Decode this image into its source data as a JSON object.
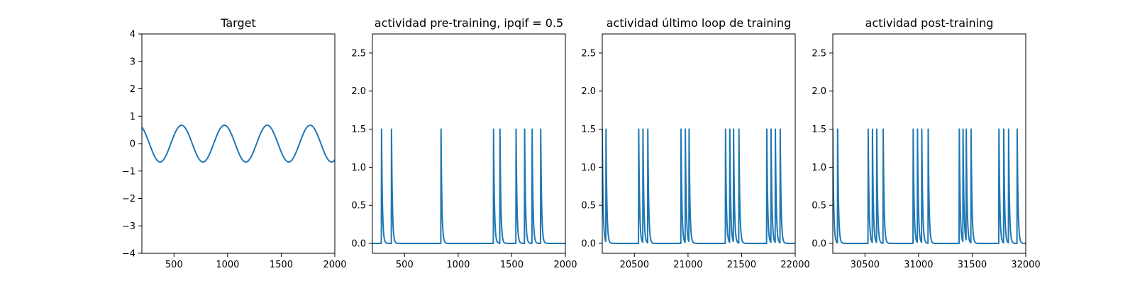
{
  "chart_data": [
    {
      "type": "line",
      "title": "Target",
      "xlim": [
        200,
        2000
      ],
      "ylim": [
        -4,
        4
      ],
      "xticks": [
        500,
        1000,
        1500,
        2000
      ],
      "yticks": [
        -4,
        -3,
        -2,
        -1,
        0,
        1,
        2,
        3,
        4
      ],
      "xtick_labels": [
        "500",
        "1000",
        "1500",
        "2000"
      ],
      "ytick_labels": [
        "−4",
        "−3",
        "−2",
        "−1",
        "0",
        "1",
        "2",
        "3",
        "4"
      ],
      "series": [
        {
          "kind": "sine",
          "amplitude": 0.67,
          "period": 400,
          "peak_x": [
            570,
            970,
            1370,
            1770
          ],
          "trough_x": [
            370,
            770,
            1170,
            1570,
            1970
          ],
          "color": "#1f77b4"
        }
      ]
    },
    {
      "type": "line",
      "title": "actividad pre-training, ipqif = 0.5",
      "xlim": [
        200,
        2000
      ],
      "ylim": [
        -0.13,
        2.75
      ],
      "xticks": [
        500,
        1000,
        1500,
        2000
      ],
      "yticks": [
        0,
        0.5,
        1,
        1.5,
        2,
        2.5
      ],
      "xtick_labels": [
        "500",
        "1000",
        "1500",
        "2000"
      ],
      "ytick_labels": [
        "0.0",
        "0.5",
        "1.0",
        "1.5",
        "2.0",
        "2.5"
      ],
      "series": [
        {
          "kind": "spikes",
          "baseline": 0,
          "peak": 1.5,
          "spike_x": [
            285,
            378,
            840,
            1330,
            1390,
            1540,
            1620,
            1690,
            1770
          ],
          "color": "#1f77b4"
        }
      ]
    },
    {
      "type": "line",
      "title": "actividad último loop de training",
      "xlim": [
        20200,
        22000
      ],
      "ylim": [
        -0.13,
        2.75
      ],
      "xticks": [
        20500,
        21000,
        21500,
        22000
      ],
      "yticks": [
        0,
        0.5,
        1,
        1.5,
        2,
        2.5
      ],
      "xtick_labels": [
        "20500",
        "21000",
        "21500",
        "22000"
      ],
      "ytick_labels": [
        "0.0",
        "0.5",
        "1.0",
        "1.5",
        "2.0",
        "2.5"
      ],
      "series": [
        {
          "kind": "spikes",
          "baseline": 0,
          "peak": 1.5,
          "spike_x": [
            20200,
            20235,
            20540,
            20580,
            20625,
            20935,
            20975,
            21010,
            21350,
            21390,
            21425,
            21475,
            21735,
            21775,
            21815,
            21860
          ],
          "color": "#1f77b4"
        }
      ]
    },
    {
      "type": "line",
      "title": "actividad post-training",
      "xlim": [
        30200,
        32000
      ],
      "ylim": [
        -0.13,
        2.75
      ],
      "xticks": [
        30500,
        31000,
        31500,
        32000
      ],
      "yticks": [
        0,
        0.5,
        1,
        1.5,
        2,
        2.5
      ],
      "xtick_labels": [
        "30500",
        "31000",
        "31500",
        "32000"
      ],
      "ytick_labels": [
        "0.0",
        "0.5",
        "1.0",
        "1.5",
        "2.0",
        "2.5"
      ],
      "series": [
        {
          "kind": "spikes",
          "baseline": 0,
          "peak": 1.5,
          "spike_x": [
            30200,
            30245,
            30530,
            30570,
            30610,
            30670,
            30950,
            30990,
            31030,
            31090,
            31380,
            31415,
            31445,
            31490,
            31750,
            31795,
            31840,
            31920
          ],
          "color": "#1f77b4"
        }
      ]
    }
  ]
}
